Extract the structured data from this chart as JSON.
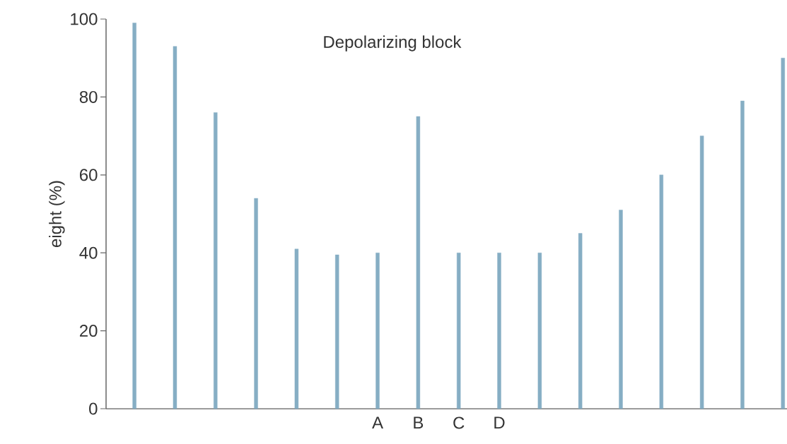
{
  "chart_data": {
    "type": "bar",
    "title": "Depolarizing block",
    "ylabel": "eight (%)",
    "categories": [
      null,
      null,
      null,
      null,
      null,
      null,
      "A",
      "B",
      "C",
      "D",
      null,
      null,
      null,
      null,
      null,
      null,
      null
    ],
    "values": [
      99,
      93,
      76,
      54,
      41,
      39.5,
      40,
      75,
      40,
      40,
      40,
      45,
      51,
      60,
      70,
      79,
      90
    ],
    "color": "#86aec4",
    "ylim": [
      0,
      100
    ],
    "yticks": [
      0,
      20,
      40,
      60,
      80,
      100
    ],
    "grid": false
  }
}
